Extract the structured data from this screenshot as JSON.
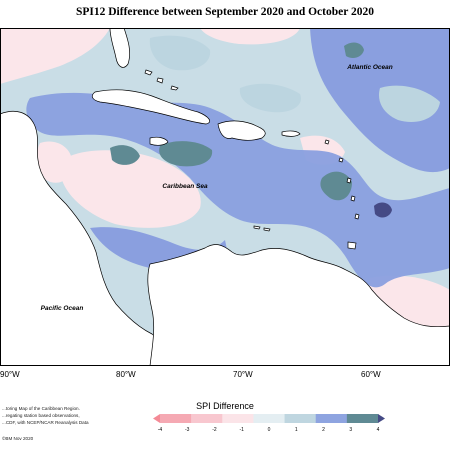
{
  "map": {
    "title": "SPI12 Difference between September 2020 and October 2020",
    "labels": {
      "atlantic": "Atlantic Ocean",
      "caribbean": "Caribbean Sea",
      "pacific": "Pacific Ocean"
    },
    "longitudes": [
      "90°W",
      "80°W",
      "70°W",
      "60°W"
    ],
    "colors": {
      "ocean_base": "#c9dde6",
      "near_zero": "#fbe6ea",
      "light_blue": "#bcd5e0",
      "mid_blue": "#8a9fdf",
      "teal_dark": "#5f8a93",
      "navy": "#454a85",
      "land": "#ffffff",
      "coast": "#000000"
    }
  },
  "footer": {
    "notes": [
      "...toring Map of the Caribbean Region.",
      "...regating station based observations,",
      "...CDF, with NCEP/NCAR Reanalysis Data"
    ],
    "copyright": "©BM Nov 2020"
  },
  "legend": {
    "title": "SPI Difference",
    "ticks": [
      "-4",
      "-3",
      "-2",
      "-1",
      "0",
      "1",
      "2",
      "3",
      "4"
    ],
    "colors": [
      "#f48a96",
      "#f5a9b3",
      "#f8c7cf",
      "#fbe4e8",
      "#e4eef2",
      "#bfd6e0",
      "#8ea4e0",
      "#5f8a94",
      "#454a85"
    ]
  }
}
